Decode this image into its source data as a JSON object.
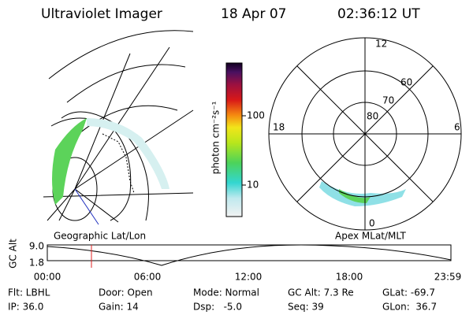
{
  "header": {
    "instrument": "Ultraviolet Imager",
    "date": "18 Apr 07",
    "time": "02:36:12 UT"
  },
  "colorbar": {
    "label": "photon cm⁻²s⁻¹",
    "ticks": [
      "100",
      "10"
    ]
  },
  "polar_plot": {
    "mlt_labels": [
      "12",
      "18",
      "6",
      "0"
    ],
    "mlat_labels": [
      "60",
      "70",
      "80"
    ]
  },
  "panel_labels": {
    "left": "Geographic Lat/Lon",
    "right": "Apex MLat/MLT"
  },
  "altitude_plot": {
    "axis_label": "GC Alt",
    "y_labels": [
      "9.0",
      "1.8"
    ],
    "time_labels": [
      "00:00",
      "06:00",
      "12:00",
      "18:00",
      "23:59"
    ]
  },
  "info": {
    "rows": [
      [
        "Flt: LBHL",
        "Door: Open",
        "Mode: Normal",
        "GC Alt: 7.3 Re",
        "GLat: -69.7"
      ],
      [
        "IP: 36.0",
        "Gain: 14",
        "Dsp:   -5.0",
        "Seq: 39",
        "GLon:  36.7"
      ]
    ]
  }
}
